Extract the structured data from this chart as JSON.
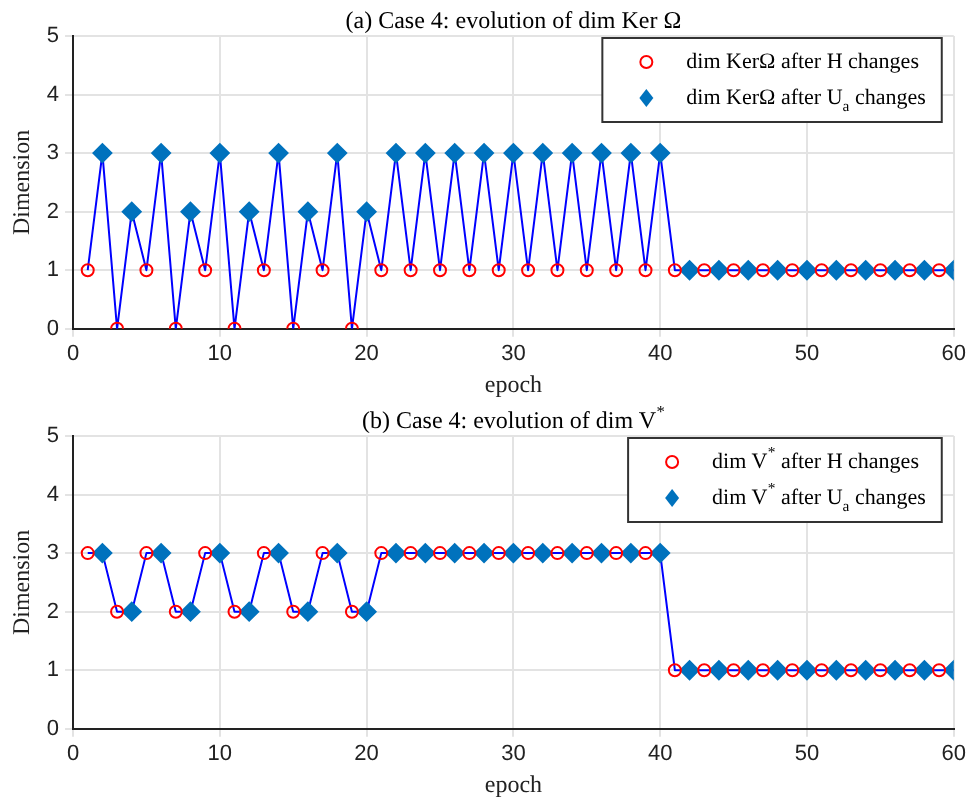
{
  "chart_data": [
    {
      "type": "line",
      "title": "(a) Case 4: evolution of dim Ker Ω",
      "xlabel": "epoch",
      "ylabel": "Dimension",
      "xlim": [
        0,
        60
      ],
      "xticks": [
        0,
        10,
        20,
        30,
        40,
        50,
        60
      ],
      "ylim": [
        0,
        5
      ],
      "yticks": [
        0,
        1,
        2,
        3,
        4,
        5
      ],
      "grid": true,
      "legend": "top right",
      "series": [
        {
          "color": "#0000ff",
          "marker": "none",
          "x": [
            1,
            2,
            3,
            4,
            5,
            6,
            7,
            8,
            9,
            10,
            11,
            12,
            13,
            14,
            15,
            16,
            17,
            18,
            19,
            20,
            21,
            22,
            23,
            24,
            25,
            26,
            27,
            28,
            29,
            30,
            31,
            32,
            33,
            34,
            35,
            36,
            37,
            38,
            39,
            40,
            41,
            42,
            43,
            44,
            45,
            46,
            47,
            48,
            49,
            50,
            51,
            52,
            53,
            54,
            55,
            56,
            57,
            58,
            59,
            60
          ],
          "values": [
            1,
            3,
            0,
            2,
            1,
            3,
            0,
            2,
            1,
            3,
            0,
            2,
            1,
            3,
            0,
            2,
            1,
            3,
            0,
            2,
            1,
            3,
            1,
            3,
            1,
            3,
            1,
            3,
            1,
            3,
            1,
            3,
            1,
            3,
            1,
            3,
            1,
            3,
            1,
            3,
            1,
            1,
            1,
            1,
            1,
            1,
            1,
            1,
            1,
            1,
            1,
            1,
            1,
            1,
            1,
            1,
            1,
            1,
            1,
            1
          ]
        },
        {
          "type": "scatter",
          "name": "dim KerΩ after H changes",
          "color": "#ff0000",
          "marker": "circle",
          "x": [
            1,
            3,
            5,
            7,
            9,
            11,
            13,
            15,
            17,
            19,
            21,
            23,
            25,
            27,
            29,
            31,
            33,
            35,
            37,
            39,
            41,
            43,
            45,
            47,
            49,
            51,
            53,
            55,
            57,
            59
          ],
          "values": [
            1,
            0,
            1,
            0,
            1,
            0,
            1,
            0,
            1,
            0,
            1,
            1,
            1,
            1,
            1,
            1,
            1,
            1,
            1,
            1,
            1,
            1,
            1,
            1,
            1,
            1,
            1,
            1,
            1,
            1
          ]
        },
        {
          "type": "scatter",
          "name": "dim KerΩ after U$_{a}$ changes",
          "color": "#0072bd",
          "marker": "diamond",
          "x": [
            2,
            4,
            6,
            8,
            10,
            12,
            14,
            16,
            18,
            20,
            22,
            24,
            26,
            28,
            30,
            32,
            34,
            36,
            38,
            40,
            42,
            44,
            46,
            48,
            50,
            52,
            54,
            56,
            58,
            60
          ],
          "values": [
            3,
            2,
            3,
            2,
            3,
            2,
            3,
            2,
            3,
            2,
            3,
            3,
            3,
            3,
            3,
            3,
            3,
            3,
            3,
            3,
            1,
            1,
            1,
            1,
            1,
            1,
            1,
            1,
            1,
            1
          ]
        }
      ]
    },
    {
      "type": "line",
      "title": "(b) Case 4: evolution of dim V$^{*}$",
      "xlabel": "epoch",
      "ylabel": "Dimension",
      "xlim": [
        0,
        60
      ],
      "xticks": [
        0,
        10,
        20,
        30,
        40,
        50,
        60
      ],
      "ylim": [
        0,
        5
      ],
      "yticks": [
        0,
        1,
        2,
        3,
        4,
        5
      ],
      "grid": true,
      "legend": "top right",
      "series": [
        {
          "color": "#0000ff",
          "marker": "none",
          "x": [
            1,
            2,
            3,
            4,
            5,
            6,
            7,
            8,
            9,
            10,
            11,
            12,
            13,
            14,
            15,
            16,
            17,
            18,
            19,
            20,
            21,
            22,
            23,
            24,
            25,
            26,
            27,
            28,
            29,
            30,
            31,
            32,
            33,
            34,
            35,
            36,
            37,
            38,
            39,
            40,
            41,
            42,
            43,
            44,
            45,
            46,
            47,
            48,
            49,
            50,
            51,
            52,
            53,
            54,
            55,
            56,
            57,
            58,
            59,
            60
          ],
          "values": [
            3,
            3,
            2,
            2,
            3,
            3,
            2,
            2,
            3,
            3,
            2,
            2,
            3,
            3,
            2,
            2,
            3,
            3,
            2,
            2,
            3,
            3,
            3,
            3,
            3,
            3,
            3,
            3,
            3,
            3,
            3,
            3,
            3,
            3,
            3,
            3,
            3,
            3,
            3,
            3,
            1,
            1,
            1,
            1,
            1,
            1,
            1,
            1,
            1,
            1,
            1,
            1,
            1,
            1,
            1,
            1,
            1,
            1,
            1,
            1
          ]
        },
        {
          "type": "scatter",
          "name": "dim V$^{*}$ after H changes",
          "color": "#ff0000",
          "marker": "circle",
          "x": [
            1,
            3,
            5,
            7,
            9,
            11,
            13,
            15,
            17,
            19,
            21,
            23,
            25,
            27,
            29,
            31,
            33,
            35,
            37,
            39,
            41,
            43,
            45,
            47,
            49,
            51,
            53,
            55,
            57,
            59
          ],
          "values": [
            3,
            2,
            3,
            2,
            3,
            2,
            3,
            2,
            3,
            2,
            3,
            3,
            3,
            3,
            3,
            3,
            3,
            3,
            3,
            3,
            1,
            1,
            1,
            1,
            1,
            1,
            1,
            1,
            1,
            1
          ]
        },
        {
          "type": "scatter",
          "name": "dim V$^{*}$ after U$_{a}$ changes",
          "color": "#0072bd",
          "marker": "diamond",
          "x": [
            2,
            4,
            6,
            8,
            10,
            12,
            14,
            16,
            18,
            20,
            22,
            24,
            26,
            28,
            30,
            32,
            34,
            36,
            38,
            40,
            42,
            44,
            46,
            48,
            50,
            52,
            54,
            56,
            58,
            60
          ],
          "values": [
            3,
            2,
            3,
            2,
            3,
            2,
            3,
            2,
            3,
            2,
            3,
            3,
            3,
            3,
            3,
            3,
            3,
            3,
            3,
            3,
            1,
            1,
            1,
            1,
            1,
            1,
            1,
            1,
            1,
            1
          ]
        }
      ]
    }
  ]
}
